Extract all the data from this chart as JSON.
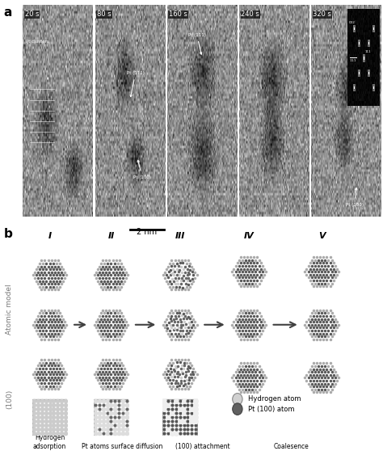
{
  "fig_width": 4.74,
  "fig_height": 5.58,
  "dpi": 100,
  "bg_color": "#ffffff",
  "panel_a_label": "a",
  "panel_b_label": "b",
  "panel_a_time_labels": [
    "20 s",
    "80 s",
    "160 s",
    "240 s",
    "320 s"
  ],
  "scale_bar_text": "2 nm",
  "col_labels": [
    "I",
    "II",
    "III",
    "IV",
    "V"
  ],
  "row_label_atomic": "Atomic model",
  "row_label_100": "(100)",
  "bottom_labels": [
    "Hydrogen\nadsorption",
    "Pt atoms surface diffusion",
    "(100) attachment",
    "Coalesence"
  ],
  "legend_items": [
    "Hydrogen atom",
    "Pt (100) atom"
  ],
  "legend_colors": [
    "#c8c8c8",
    "#606060"
  ],
  "arrow_color": "#404040",
  "text_color": "#000000",
  "gray_light": "#b0b0b0",
  "gray_mid": "#787878",
  "gray_dark": "#404040",
  "panel_a_bg": "#a0a0a0",
  "panel_b_bg": "#ffffff",
  "em_bg": "#888888"
}
